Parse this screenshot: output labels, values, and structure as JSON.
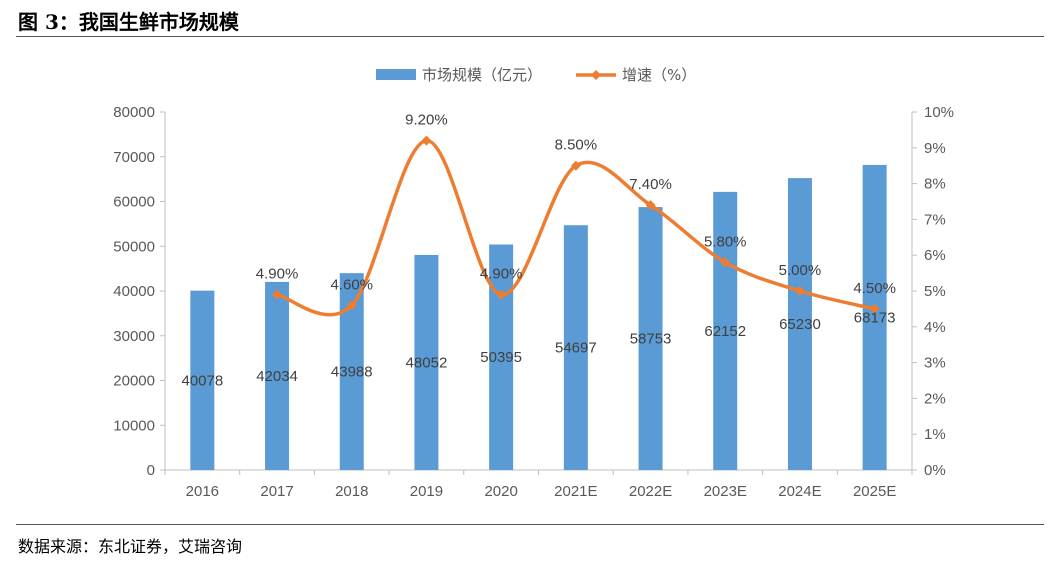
{
  "figure": {
    "title": "图 3：我国生鲜市场规模",
    "source": "数据来源：东北证券，艾瑞咨询"
  },
  "chart_data": {
    "type": "bar",
    "categories": [
      "2016",
      "2017",
      "2018",
      "2019",
      "2020",
      "2021E",
      "2022E",
      "2023E",
      "2024E",
      "2025E"
    ],
    "series": [
      {
        "name": "市场规模（亿元）",
        "type": "bar",
        "axis": "left",
        "color": "#5b9bd5",
        "values": [
          40078,
          42034,
          43988,
          48052,
          50395,
          54697,
          58753,
          62152,
          65230,
          68173
        ],
        "labels": [
          "40078",
          "42034",
          "43988",
          "48052",
          "50395",
          "54697",
          "58753",
          "62152",
          "65230",
          "68173"
        ]
      },
      {
        "name": "增速（%）",
        "type": "line",
        "axis": "right",
        "color": "#ed7d31",
        "smooth": true,
        "values": [
          null,
          4.9,
          4.6,
          9.2,
          4.9,
          8.5,
          7.4,
          5.8,
          5.0,
          4.5
        ],
        "labels": [
          "",
          "4.90%",
          "4.60%",
          "9.20%",
          "4.90%",
          "8.50%",
          "7.40%",
          "5.80%",
          "5.00%",
          "4.50%"
        ]
      }
    ],
    "ylim_left": [
      0,
      80000
    ],
    "yticks_left": [
      "0",
      "10000",
      "20000",
      "30000",
      "40000",
      "50000",
      "60000",
      "70000",
      "80000"
    ],
    "ylim_right": [
      0,
      10
    ],
    "yticks_right": [
      "0%",
      "1%",
      "2%",
      "3%",
      "4%",
      "5%",
      "6%",
      "7%",
      "8%",
      "9%",
      "10%"
    ],
    "legend_position": "top",
    "grid": false
  }
}
